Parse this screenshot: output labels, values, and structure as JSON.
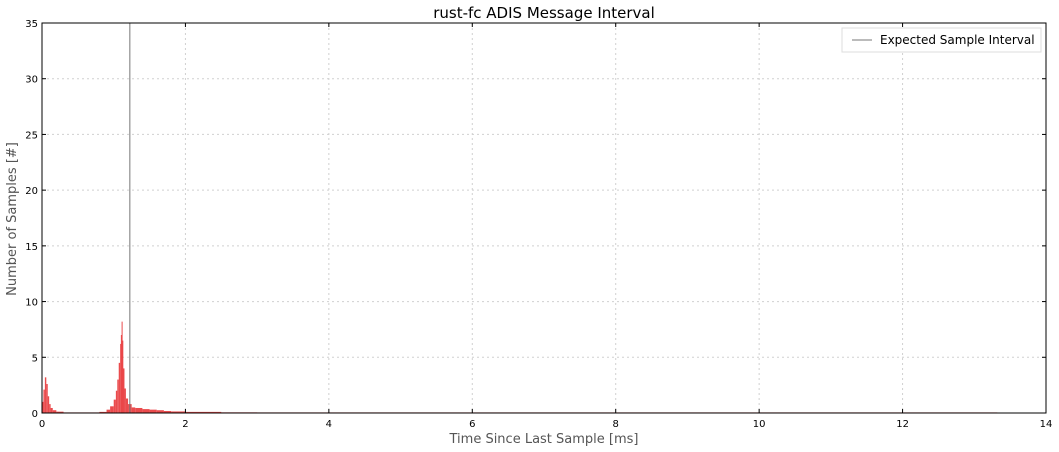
{
  "chart_data": {
    "type": "bar",
    "title": "rust-fc ADIS Message Interval",
    "xlabel": "Time Since Last Sample [ms]",
    "ylabel": "Number of Samples [#]",
    "xlim": [
      0,
      14
    ],
    "ylim": [
      0,
      35
    ],
    "xticks": [
      0,
      2,
      4,
      6,
      8,
      10,
      12,
      14
    ],
    "yticks": [
      0,
      5,
      10,
      15,
      20,
      25,
      30,
      35
    ],
    "grid": true,
    "legend_position": "top-right",
    "series": [
      {
        "kind": "histogram",
        "color": "#e8373a",
        "bins": [
          {
            "x": 0.0,
            "y": 1.0
          },
          {
            "x": 0.02,
            "y": 2.1
          },
          {
            "x": 0.04,
            "y": 3.2
          },
          {
            "x": 0.06,
            "y": 2.6
          },
          {
            "x": 0.08,
            "y": 1.5
          },
          {
            "x": 0.1,
            "y": 0.8
          },
          {
            "x": 0.12,
            "y": 0.45
          },
          {
            "x": 0.15,
            "y": 0.25
          },
          {
            "x": 0.2,
            "y": 0.12
          },
          {
            "x": 0.3,
            "y": 0.05
          },
          {
            "x": 0.5,
            "y": 0.03
          },
          {
            "x": 0.7,
            "y": 0.04
          },
          {
            "x": 0.8,
            "y": 0.1
          },
          {
            "x": 0.9,
            "y": 0.3
          },
          {
            "x": 0.95,
            "y": 0.6
          },
          {
            "x": 1.0,
            "y": 1.2
          },
          {
            "x": 1.03,
            "y": 2.0
          },
          {
            "x": 1.05,
            "y": 3.0
          },
          {
            "x": 1.07,
            "y": 4.5
          },
          {
            "x": 1.09,
            "y": 6.2
          },
          {
            "x": 1.1,
            "y": 7.0
          },
          {
            "x": 1.11,
            "y": 8.2
          },
          {
            "x": 1.12,
            "y": 6.5
          },
          {
            "x": 1.13,
            "y": 4.0
          },
          {
            "x": 1.15,
            "y": 2.2
          },
          {
            "x": 1.17,
            "y": 1.3
          },
          {
            "x": 1.2,
            "y": 0.8
          },
          {
            "x": 1.25,
            "y": 0.5
          },
          {
            "x": 1.3,
            "y": 0.45
          },
          {
            "x": 1.4,
            "y": 0.35
          },
          {
            "x": 1.5,
            "y": 0.3
          },
          {
            "x": 1.6,
            "y": 0.25
          },
          {
            "x": 1.7,
            "y": 0.18
          },
          {
            "x": 1.8,
            "y": 0.14
          },
          {
            "x": 2.0,
            "y": 0.1
          },
          {
            "x": 2.5,
            "y": 0.06
          },
          {
            "x": 3.0,
            "y": 0.05
          },
          {
            "x": 4.0,
            "y": 0.04
          },
          {
            "x": 6.0,
            "y": 0.03
          },
          {
            "x": 8.0,
            "y": 0.03
          },
          {
            "x": 10.0,
            "y": 0.02
          },
          {
            "x": 12.0,
            "y": 0.02
          },
          {
            "x": 13.3,
            "y": 0.02
          }
        ]
      },
      {
        "name": "Expected Sample Interval",
        "kind": "vline",
        "x": 1.225,
        "color": "#777777"
      }
    ]
  }
}
